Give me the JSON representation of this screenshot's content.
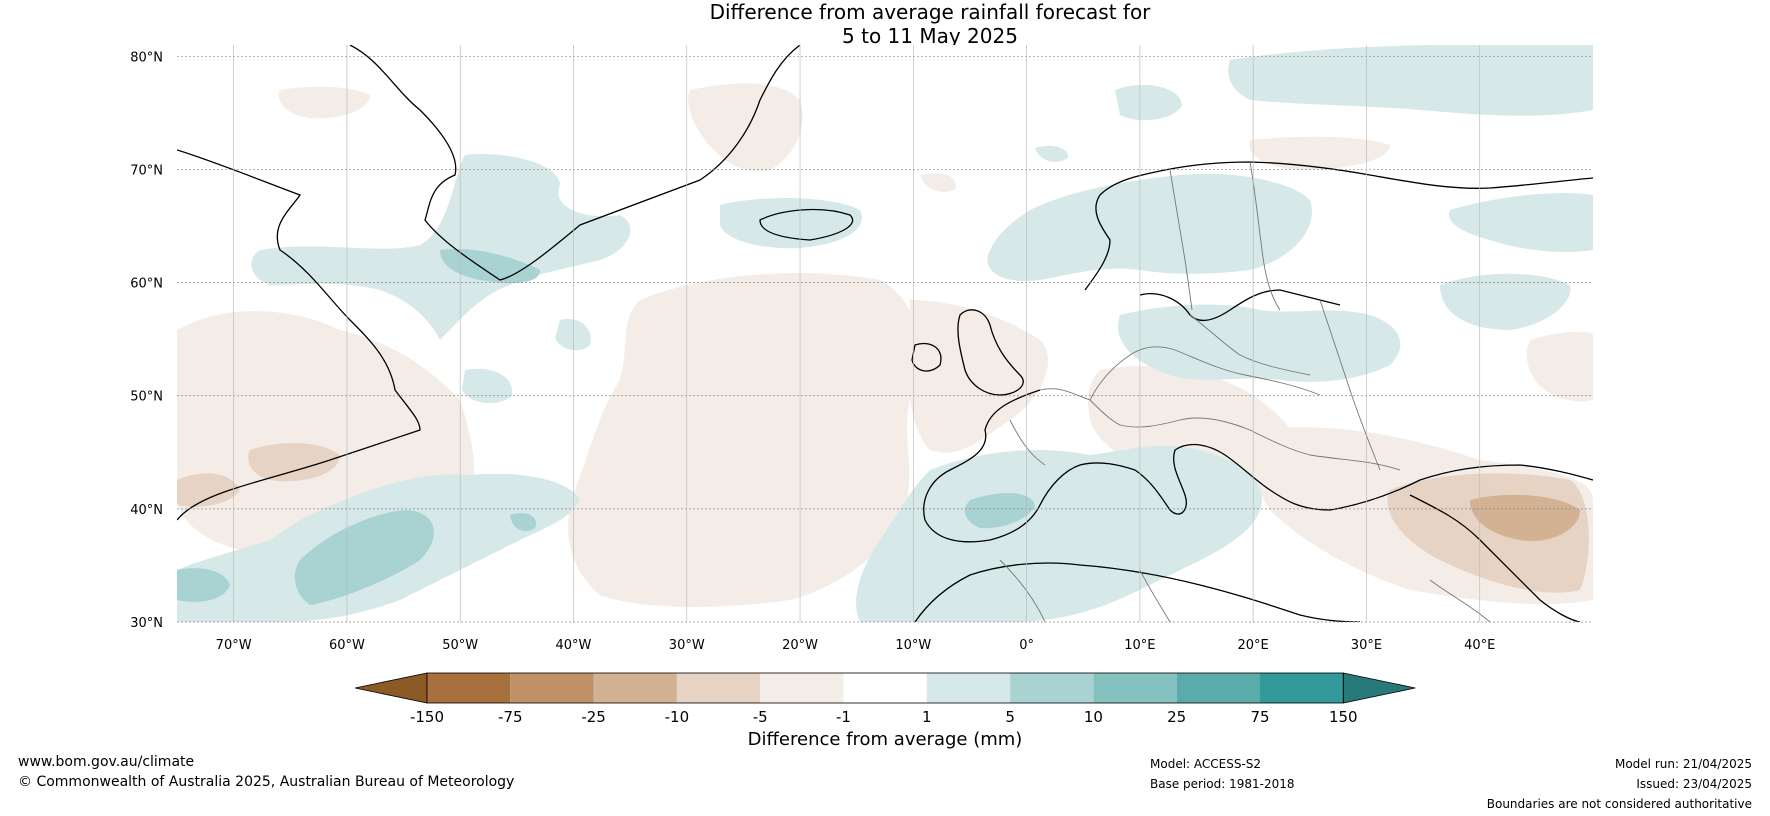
{
  "title": {
    "line1": "Difference from average rainfall forecast for",
    "line2": "5 to 11 May 2025"
  },
  "map": {
    "lat_labels": [
      "80°N",
      "70°N",
      "60°N",
      "50°N",
      "40°N",
      "30°N"
    ],
    "lon_labels": [
      "70°W",
      "60°W",
      "50°W",
      "40°W",
      "30°W",
      "20°W",
      "10°W",
      "0°",
      "10°E",
      "20°E",
      "30°E",
      "40°E"
    ],
    "lat_range": [
      30,
      81
    ],
    "lon_range": [
      -75,
      50
    ]
  },
  "colorbar": {
    "ticks": [
      "-150",
      "-75",
      "-25",
      "-10",
      "-5",
      "-1",
      "1",
      "5",
      "10",
      "25",
      "75",
      "150"
    ],
    "colors": [
      "#8a5a27",
      "#a8703d",
      "#c09068",
      "#d3b293",
      "#e6d3c3",
      "#f4ede7",
      "#ffffff",
      "#d6e9e8",
      "#a8d3d2",
      "#84c2bf",
      "#5aacab",
      "#34999a",
      "#287a7a"
    ],
    "label": "Difference from average (mm)"
  },
  "footer": {
    "website": "www.bom.gov.au/climate",
    "copyright": "© Commonwealth of Australia 2025, Australian Bureau of Meteorology",
    "model": "Model: ACCESS-S2",
    "base_period": "Base period: 1981-2018",
    "model_run": "Model run: 21/04/2025",
    "issued": "Issued: 23/04/2025",
    "disclaimer": "Boundaries are not considered authoritative"
  }
}
